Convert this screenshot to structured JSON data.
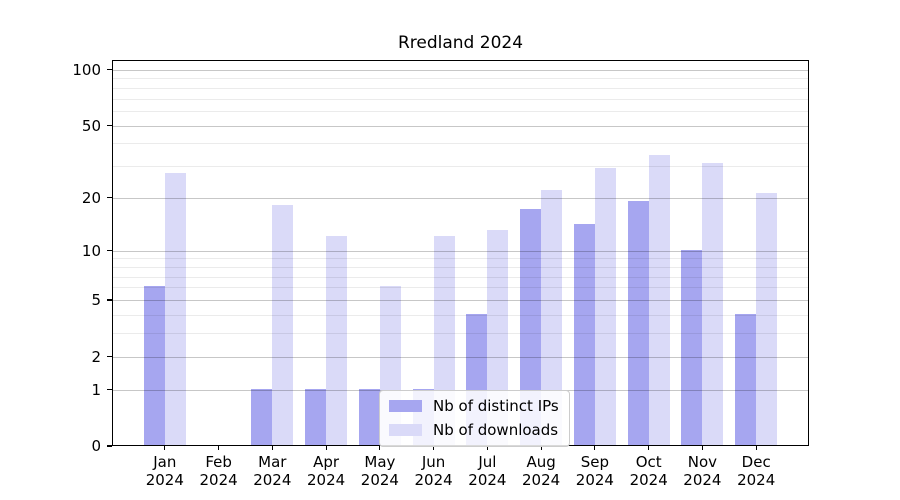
{
  "title": "Rredland 2024",
  "chart_data": {
    "type": "bar",
    "title": "Rredland 2024",
    "categories": [
      "Jan\n2024",
      "Feb\n2024",
      "Mar\n2024",
      "Apr\n2024",
      "May\n2024",
      "Jun\n2024",
      "Jul\n2024",
      "Aug\n2024",
      "Sep\n2024",
      "Oct\n2024",
      "Nov\n2024",
      "Dec\n2024"
    ],
    "series": [
      {
        "name": "Nb of distinct IPs",
        "color": "#a6a6f0",
        "values": [
          6,
          0,
          1,
          1,
          1,
          1,
          4,
          17,
          14,
          19,
          10,
          4
        ]
      },
      {
        "name": "Nb of downloads",
        "color": "#dadaf8",
        "values": [
          27,
          0,
          18,
          12,
          6,
          12,
          13,
          22,
          29,
          34,
          31,
          21
        ]
      }
    ],
    "xlabel": "",
    "ylabel": "",
    "yscale": "log1p",
    "ylim": [
      0,
      113
    ],
    "y_major_ticks": [
      0,
      1,
      2,
      5,
      10,
      20,
      50,
      100
    ],
    "y_minor_ticks": [
      3,
      4,
      6,
      7,
      8,
      9,
      30,
      40,
      60,
      70,
      80,
      90
    ],
    "grid": true,
    "legend_position": "lower center"
  }
}
